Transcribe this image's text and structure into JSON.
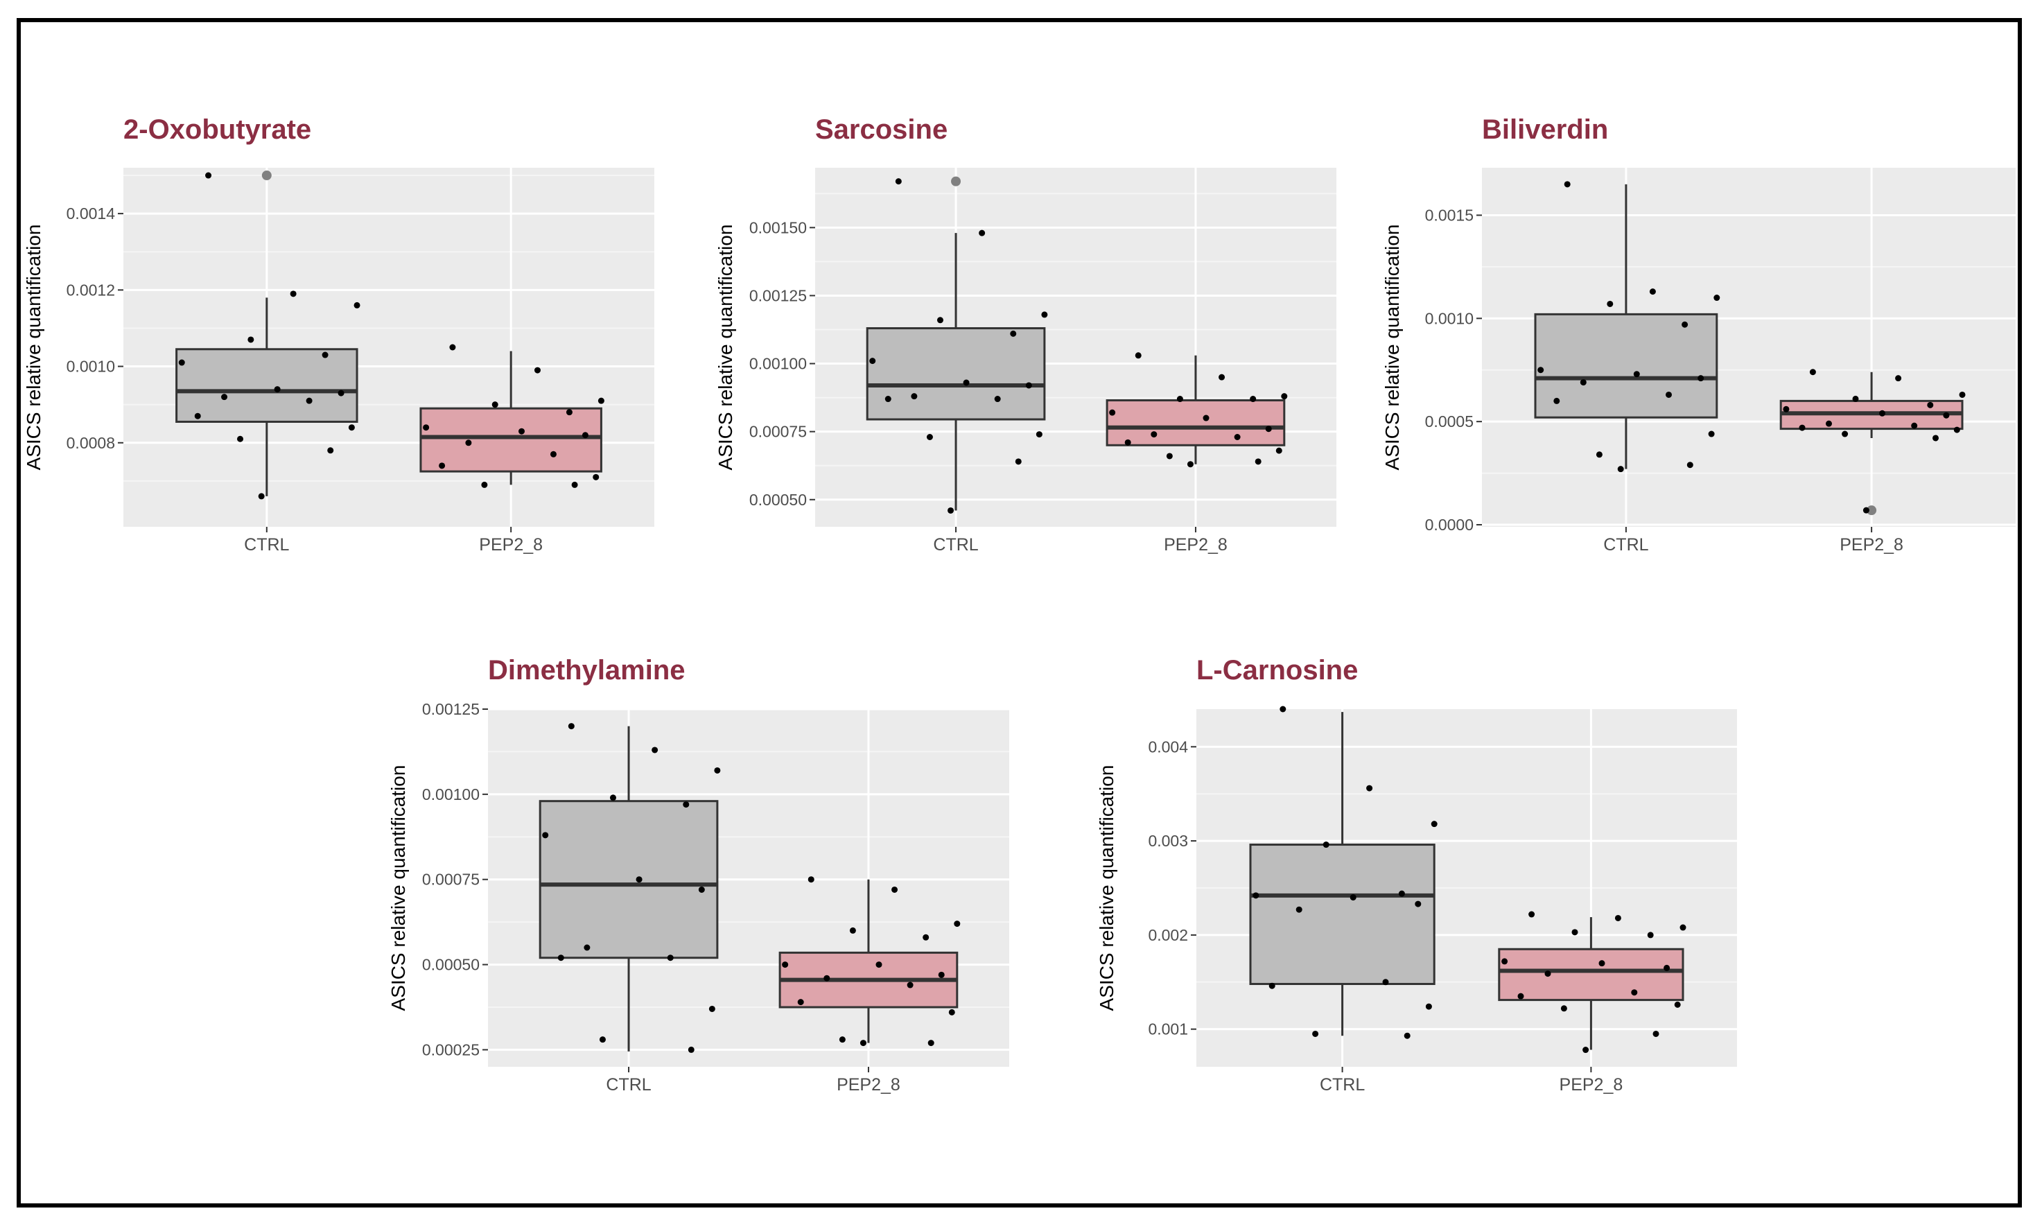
{
  "colors": {
    "title": "#8b2e43",
    "panel_bg": "#ebebeb",
    "grid_major": "#ffffff",
    "grid_minor": "#f5f5f5",
    "ctrl_fill": "#bdbdbd",
    "pep_fill": "#dea4ab",
    "outlier": "#808080"
  },
  "chart_data": [
    {
      "type": "boxplot",
      "title": "2-Oxobutyrate",
      "xlabel": "",
      "ylabel": "ASICS relative quantification",
      "categories": [
        "CTRL",
        "PEP2_8"
      ],
      "ylim": [
        0.00058,
        0.00152
      ],
      "yticks": [
        0.0008,
        0.001,
        0.0012,
        0.0014
      ],
      "yticklabels": [
        "0.0008",
        "0.0010",
        "0.0012",
        "0.0014"
      ],
      "boxes": [
        {
          "name": "CTRL",
          "q1": 0.000855,
          "median": 0.000935,
          "q3": 0.001045,
          "whisker_low": 0.00066,
          "whisker_high": 0.00118,
          "outliers": [
            0.0015
          ],
          "points": [
            0.0015,
            0.00119,
            0.00116,
            0.00107,
            0.00103,
            0.00101,
            0.00094,
            0.00093,
            0.00092,
            0.00091,
            0.00087,
            0.00084,
            0.00081,
            0.00078,
            0.00066
          ]
        },
        {
          "name": "PEP2_8",
          "q1": 0.000725,
          "median": 0.000815,
          "q3": 0.00089,
          "whisker_low": 0.00069,
          "whisker_high": 0.00104,
          "outliers": [],
          "points": [
            0.00105,
            0.00099,
            0.00091,
            0.0009,
            0.00088,
            0.00084,
            0.00083,
            0.00082,
            0.0008,
            0.00077,
            0.00074,
            0.00071,
            0.00069,
            0.00069
          ]
        }
      ]
    },
    {
      "type": "boxplot",
      "title": "Sarcosine",
      "xlabel": "",
      "ylabel": "ASICS relative quantification",
      "categories": [
        "CTRL",
        "PEP2_8"
      ],
      "ylim": [
        0.0004,
        0.00172
      ],
      "yticks": [
        0.0005,
        0.00075,
        0.001,
        0.00125,
        0.0015
      ],
      "yticklabels": [
        "0.00050",
        "0.00075",
        "0.00100",
        "0.00125",
        "0.00150"
      ],
      "boxes": [
        {
          "name": "CTRL",
          "q1": 0.000795,
          "median": 0.00092,
          "q3": 0.00113,
          "whisker_low": 0.00046,
          "whisker_high": 0.00148,
          "outliers": [
            0.00167
          ],
          "points": [
            0.00167,
            0.00148,
            0.00118,
            0.00116,
            0.00111,
            0.00101,
            0.00093,
            0.00092,
            0.00088,
            0.00087,
            0.00087,
            0.00074,
            0.00073,
            0.00064,
            0.00046
          ]
        },
        {
          "name": "PEP2_8",
          "q1": 0.0007,
          "median": 0.000765,
          "q3": 0.000865,
          "whisker_low": 0.00063,
          "whisker_high": 0.00103,
          "outliers": [],
          "points": [
            0.00103,
            0.00095,
            0.00088,
            0.00087,
            0.00087,
            0.00082,
            0.0008,
            0.00076,
            0.00074,
            0.00073,
            0.00071,
            0.00068,
            0.00066,
            0.00064,
            0.00063
          ]
        }
      ]
    },
    {
      "type": "boxplot",
      "title": "Biliverdin",
      "xlabel": "",
      "ylabel": "ASICS relative quantification",
      "categories": [
        "CTRL",
        "PEP2_8"
      ],
      "ylim": [
        -1e-05,
        0.00173
      ],
      "yticks": [
        0,
        0.0005,
        0.001,
        0.0015
      ],
      "yticklabels": [
        "0.0000",
        "0.0005",
        "0.0010",
        "0.0015"
      ],
      "boxes": [
        {
          "name": "CTRL",
          "q1": 0.00052,
          "median": 0.00071,
          "q3": 0.00102,
          "whisker_low": 0.00027,
          "whisker_high": 0.00165,
          "outliers": [],
          "points": [
            0.00165,
            0.00113,
            0.0011,
            0.00107,
            0.00097,
            0.00075,
            0.00073,
            0.00071,
            0.00069,
            0.00063,
            0.0006,
            0.00044,
            0.00034,
            0.00029,
            0.00027
          ]
        },
        {
          "name": "PEP2_8",
          "q1": 0.000465,
          "median": 0.00054,
          "q3": 0.0006,
          "whisker_low": 0.00042,
          "whisker_high": 0.00074,
          "outliers": [
            7e-05
          ],
          "points": [
            0.00074,
            0.00071,
            0.00063,
            0.00061,
            0.00058,
            0.00056,
            0.00054,
            0.00053,
            0.00049,
            0.00048,
            0.00047,
            0.00046,
            0.00044,
            0.00042,
            7e-05
          ]
        }
      ]
    },
    {
      "type": "boxplot",
      "title": "Dimethylamine",
      "xlabel": "",
      "ylabel": "ASICS relative quantification",
      "categories": [
        "CTRL",
        "PEP2_8"
      ],
      "ylim": [
        0.0002,
        0.00125
      ],
      "yticks": [
        0.00025,
        0.0005,
        0.00075,
        0.001,
        0.00125
      ],
      "yticklabels": [
        "0.00025",
        "0.00050",
        "0.00075",
        "0.00100",
        "0.00125"
      ],
      "boxes": [
        {
          "name": "CTRL",
          "q1": 0.00052,
          "median": 0.000735,
          "q3": 0.00098,
          "whisker_low": 0.000245,
          "whisker_high": 0.0012,
          "outliers": [],
          "points": [
            0.0012,
            0.00113,
            0.00107,
            0.00099,
            0.00097,
            0.00088,
            0.00075,
            0.00072,
            0.00055,
            0.00052,
            0.00052,
            0.00037,
            0.00028,
            0.00025
          ]
        },
        {
          "name": "PEP2_8",
          "q1": 0.000375,
          "median": 0.000455,
          "q3": 0.000535,
          "whisker_low": 0.00027,
          "whisker_high": 0.00075,
          "outliers": [],
          "points": [
            0.00075,
            0.00072,
            0.00062,
            0.0006,
            0.00058,
            0.0005,
            0.0005,
            0.00047,
            0.00046,
            0.00044,
            0.00039,
            0.00036,
            0.00028,
            0.00027,
            0.00027
          ]
        }
      ]
    },
    {
      "type": "boxplot",
      "title": "L-Carnosine",
      "xlabel": "",
      "ylabel": "ASICS relative quantification",
      "categories": [
        "CTRL",
        "PEP2_8"
      ],
      "ylim": [
        0.0006,
        0.0044
      ],
      "yticks": [
        0.001,
        0.002,
        0.003,
        0.004
      ],
      "yticklabels": [
        "0.001",
        "0.002",
        "0.003",
        "0.004"
      ],
      "boxes": [
        {
          "name": "CTRL",
          "q1": 0.00148,
          "median": 0.00242,
          "q3": 0.00296,
          "whisker_low": 0.00093,
          "whisker_high": 0.00437,
          "outliers": [],
          "points": [
            0.0044,
            0.00356,
            0.00318,
            0.00296,
            0.00244,
            0.00242,
            0.0024,
            0.00233,
            0.00227,
            0.0015,
            0.00146,
            0.00124,
            0.00095,
            0.00093
          ]
        },
        {
          "name": "PEP2_8",
          "q1": 0.00131,
          "median": 0.00162,
          "q3": 0.00185,
          "whisker_low": 0.00078,
          "whisker_high": 0.00219,
          "outliers": [],
          "points": [
            0.00222,
            0.00218,
            0.00208,
            0.00203,
            0.002,
            0.00172,
            0.0017,
            0.00165,
            0.00159,
            0.00139,
            0.00135,
            0.00126,
            0.00122,
            0.00095,
            0.00078
          ]
        }
      ]
    }
  ]
}
